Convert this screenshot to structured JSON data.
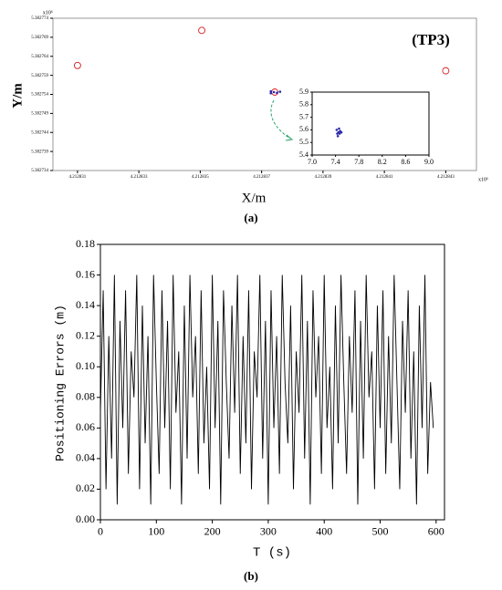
{
  "chart_data": [
    {
      "type": "scatter",
      "title": "(TP3)",
      "xlabel": "X/m",
      "ylabel": "Y/m",
      "caption": "(a)",
      "x_exponent_label": "x10⁶",
      "y_exponent_label": "x10⁶",
      "xlim": [
        4.2128302,
        4.212844
      ],
      "ylim": [
        5.382734,
        5.382774
      ],
      "xticks": [
        4.212831,
        4.212833,
        4.212835,
        4.212837,
        4.212839,
        4.212841,
        4.212843
      ],
      "yticks": [
        5.382734,
        5.382739,
        5.382744,
        5.382749,
        5.382754,
        5.382759,
        5.382764,
        5.382769,
        5.382774
      ],
      "series": [
        {
          "color": "#d62020",
          "marker": "ring",
          "x": [
            4.212831,
            4.21283505,
            4.212843,
            4.21283743
          ],
          "y": [
            5.3827616,
            5.3827708,
            5.3827602,
            5.3827546
          ]
        },
        {
          "color": "#2a2aa8",
          "marker": "dot",
          "x": [
            4.2128373,
            4.2128374,
            4.2128375,
            4.2128373,
            4.2128376
          ],
          "y": [
            5.3827548,
            5.3827546,
            5.3827544,
            5.3827543,
            5.3827547
          ]
        }
      ],
      "inset": {
        "type": "scatter",
        "xlim": [
          7,
          9
        ],
        "ylim": [
          5.4,
          5.9
        ],
        "xticks": [
          {
            "value": 7,
            "label": "7.0"
          },
          7.4,
          7.8,
          8.2,
          8.6,
          {
            "value": 9,
            "label": "9.0"
          }
        ],
        "yticks": [
          5.4,
          5.5,
          5.6,
          5.7,
          5.8,
          5.9
        ],
        "series": [
          {
            "color": "#2a2aa8",
            "marker": "dot",
            "x": [
              7.42,
              7.45,
              7.47,
              7.44,
              7.5,
              7.46,
              7.43,
              7.48
            ],
            "y": [
              5.6,
              5.58,
              5.57,
              5.55,
              5.58,
              5.61,
              5.57,
              5.59
            ]
          }
        ]
      }
    },
    {
      "type": "line",
      "xlabel": "T (s)",
      "ylabel": "Positioning Errors (m)",
      "caption": "(b)",
      "xlim": [
        0,
        615
      ],
      "ylim": [
        0,
        0.18
      ],
      "xticks": [
        0,
        100,
        200,
        300,
        400,
        500,
        600
      ],
      "yticks": [
        {
          "value": 0,
          "label": "0.00"
        },
        0.02,
        0.04,
        0.06,
        0.08,
        {
          "value": 0.1,
          "label": "0.10"
        },
        0.12,
        0.14,
        0.16,
        0.18
      ],
      "series": [
        {
          "color": "#000000",
          "x": [
            0,
            5,
            10,
            15,
            20,
            25,
            30,
            35,
            40,
            45,
            50,
            55,
            60,
            65,
            70,
            75,
            80,
            85,
            90,
            95,
            100,
            105,
            110,
            115,
            120,
            125,
            130,
            135,
            140,
            145,
            150,
            155,
            160,
            165,
            170,
            175,
            180,
            185,
            190,
            195,
            200,
            205,
            210,
            215,
            220,
            225,
            230,
            235,
            240,
            245,
            250,
            255,
            260,
            265,
            270,
            275,
            280,
            285,
            290,
            295,
            300,
            305,
            310,
            315,
            320,
            325,
            330,
            335,
            340,
            345,
            350,
            355,
            360,
            365,
            370,
            375,
            380,
            385,
            390,
            395,
            400,
            405,
            410,
            415,
            420,
            425,
            430,
            435,
            440,
            445,
            450,
            455,
            460,
            465,
            470,
            475,
            480,
            485,
            490,
            495,
            500,
            505,
            510,
            515,
            520,
            525,
            530,
            535,
            540,
            545,
            550,
            555,
            560,
            565,
            570,
            575,
            580,
            585,
            590,
            595
          ],
          "values": [
            0.07,
            0.15,
            0.02,
            0.12,
            0.04,
            0.16,
            0.01,
            0.13,
            0.06,
            0.15,
            0.03,
            0.11,
            0.08,
            0.16,
            0.02,
            0.14,
            0.05,
            0.12,
            0.01,
            0.16,
            0.09,
            0.03,
            0.15,
            0.06,
            0.13,
            0.02,
            0.16,
            0.07,
            0.11,
            0.01,
            0.14,
            0.04,
            0.16,
            0.08,
            0.12,
            0.03,
            0.15,
            0.05,
            0.1,
            0.02,
            0.16,
            0.06,
            0.13,
            0.01,
            0.15,
            0.09,
            0.04,
            0.14,
            0.07,
            0.16,
            0.03,
            0.12,
            0.05,
            0.15,
            0.02,
            0.11,
            0.08,
            0.16,
            0.04,
            0.13,
            0.01,
            0.15,
            0.06,
            0.12,
            0.03,
            0.16,
            0.09,
            0.05,
            0.14,
            0.02,
            0.11,
            0.07,
            0.16,
            0.04,
            0.13,
            0.01,
            0.15,
            0.08,
            0.12,
            0.03,
            0.16,
            0.06,
            0.1,
            0.02,
            0.14,
            0.05,
            0.16,
            0.09,
            0.03,
            0.12,
            0.07,
            0.15,
            0.01,
            0.13,
            0.04,
            0.16,
            0.08,
            0.11,
            0.02,
            0.14,
            0.06,
            0.15,
            0.03,
            0.12,
            0.05,
            0.16,
            0.09,
            0.02,
            0.13,
            0.07,
            0.15,
            0.04,
            0.11,
            0.01,
            0.14,
            0.06,
            0.16,
            0.03,
            0.09,
            0.06
          ]
        }
      ]
    }
  ]
}
